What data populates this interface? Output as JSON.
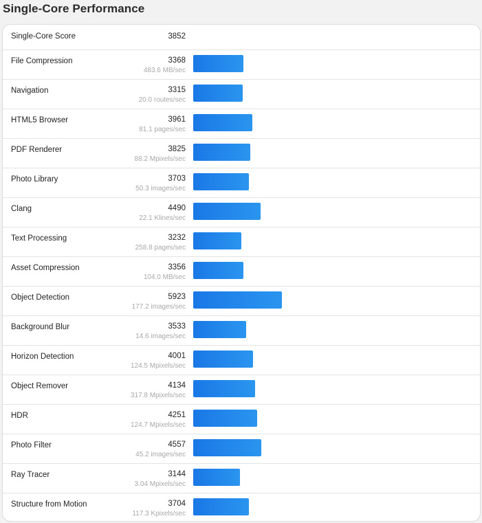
{
  "title": "Single-Core Performance",
  "summary": {
    "label": "Single-Core Score",
    "score": "3852"
  },
  "rows": [
    {
      "name": "File Compression",
      "score": "3368",
      "unit": "483.6 MB/sec"
    },
    {
      "name": "Navigation",
      "score": "3315",
      "unit": "20.0 routes/sec"
    },
    {
      "name": "HTML5 Browser",
      "score": "3961",
      "unit": "81.1 pages/sec"
    },
    {
      "name": "PDF Renderer",
      "score": "3825",
      "unit": "88.2 Mpixels/sec"
    },
    {
      "name": "Photo Library",
      "score": "3703",
      "unit": "50.3 images/sec"
    },
    {
      "name": "Clang",
      "score": "4490",
      "unit": "22.1 Klines/sec"
    },
    {
      "name": "Text Processing",
      "score": "3232",
      "unit": "258.8 pages/sec"
    },
    {
      "name": "Asset Compression",
      "score": "3356",
      "unit": "104.0 MB/sec"
    },
    {
      "name": "Object Detection",
      "score": "5923",
      "unit": "177.2 images/sec"
    },
    {
      "name": "Background Blur",
      "score": "3533",
      "unit": "14.6 images/sec"
    },
    {
      "name": "Horizon Detection",
      "score": "4001",
      "unit": "124.5 Mpixels/sec"
    },
    {
      "name": "Object Remover",
      "score": "4134",
      "unit": "317.8 Mpixels/sec"
    },
    {
      "name": "HDR",
      "score": "4251",
      "unit": "124.7 Mpixels/sec"
    },
    {
      "name": "Photo Filter",
      "score": "4557",
      "unit": "45.2 images/sec"
    },
    {
      "name": "Ray Tracer",
      "score": "3144",
      "unit": "3.04 Mpixels/sec"
    },
    {
      "name": "Structure from Motion",
      "score": "3704",
      "unit": "117.3 Kpixels/sec"
    }
  ],
  "colors": {
    "bar_start": "#1a78e6",
    "bar_end": "#2a95ef"
  },
  "chart_data": {
    "type": "bar",
    "orientation": "horizontal",
    "title": "Single-Core Performance",
    "summary": {
      "label": "Single-Core Score",
      "value": 3852
    },
    "categories": [
      "File Compression",
      "Navigation",
      "HTML5 Browser",
      "PDF Renderer",
      "Photo Library",
      "Clang",
      "Text Processing",
      "Asset Compression",
      "Object Detection",
      "Background Blur",
      "Horizon Detection",
      "Object Remover",
      "HDR",
      "Photo Filter",
      "Ray Tracer",
      "Structure from Motion"
    ],
    "values": [
      3368,
      3315,
      3961,
      3825,
      3703,
      4490,
      3232,
      3356,
      5923,
      3533,
      4001,
      4134,
      4251,
      4557,
      3144,
      3704
    ],
    "throughput": [
      "483.6 MB/sec",
      "20.0 routes/sec",
      "81.1 pages/sec",
      "88.2 Mpixels/sec",
      "50.3 images/sec",
      "22.1 Klines/sec",
      "258.8 pages/sec",
      "104.0 MB/sec",
      "177.2 images/sec",
      "14.6 images/sec",
      "124.5 Mpixels/sec",
      "317.8 Mpixels/sec",
      "124.7 Mpixels/sec",
      "45.2 images/sec",
      "3.04 Mpixels/sec",
      "117.3 Kpixels/sec"
    ],
    "xlabel": "",
    "ylabel": "",
    "grid": false,
    "legend": "none"
  }
}
